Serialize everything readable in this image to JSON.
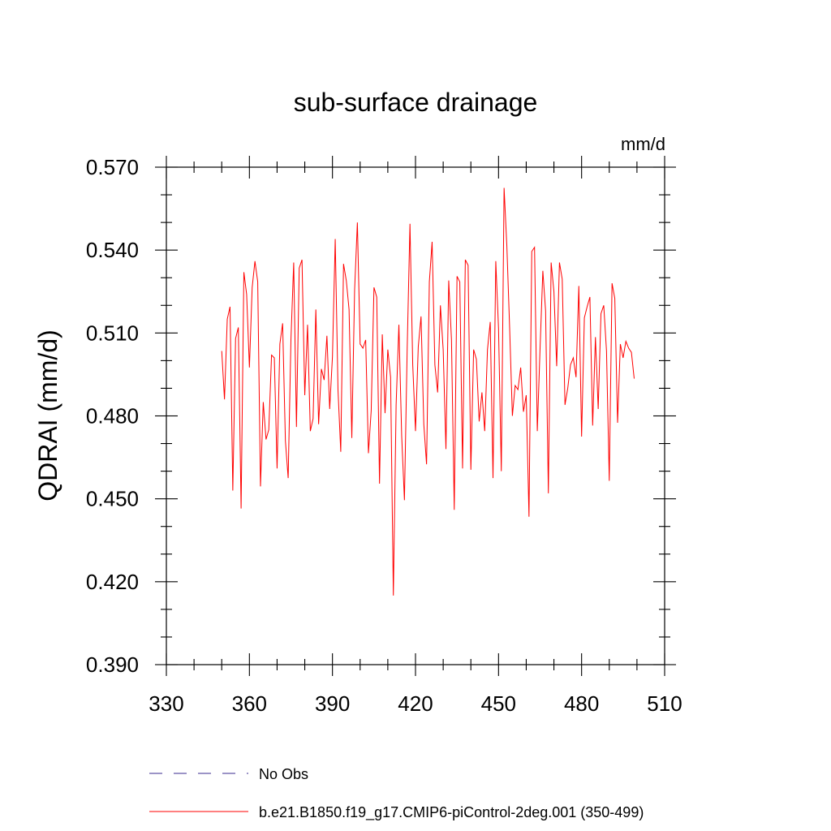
{
  "chart_data": {
    "type": "line",
    "title": "sub-surface drainage",
    "units": "mm/d",
    "ylabel": "QDRAI  (mm/d)",
    "xlabel": "",
    "xlim": [
      330,
      510
    ],
    "ylim": [
      0.39,
      0.57
    ],
    "x_ticks": [
      330,
      360,
      390,
      420,
      450,
      480,
      510
    ],
    "x_tick_labels": [
      "330",
      "360",
      "390",
      "420",
      "450",
      "480",
      "510"
    ],
    "y_ticks": [
      0.39,
      0.42,
      0.45,
      0.48,
      0.51,
      0.54,
      0.57
    ],
    "y_tick_labels": [
      "0.390",
      "0.420",
      "0.450",
      "0.480",
      "0.510",
      "0.540",
      "0.570"
    ],
    "series": [
      {
        "name": "b.e21.B1850.f19_g17.CMIP6-piControl-2deg.001 (350-499)",
        "color": "#ff0000",
        "x_start": 350,
        "x_step": 1,
        "values": [
          0.5035,
          0.486,
          0.515,
          0.5195,
          0.453,
          0.508,
          0.512,
          0.4465,
          0.532,
          0.524,
          0.4975,
          0.5265,
          0.536,
          0.5285,
          0.4545,
          0.485,
          0.4715,
          0.475,
          0.502,
          0.501,
          0.461,
          0.506,
          0.5135,
          0.471,
          0.4575,
          0.5075,
          0.5355,
          0.476,
          0.5335,
          0.5365,
          0.4875,
          0.513,
          0.4745,
          0.479,
          0.5185,
          0.477,
          0.497,
          0.493,
          0.509,
          0.4825,
          0.5015,
          0.544,
          0.4895,
          0.467,
          0.535,
          0.529,
          0.5185,
          0.472,
          0.5255,
          0.55,
          0.506,
          0.5045,
          0.5075,
          0.4665,
          0.482,
          0.5265,
          0.523,
          0.4555,
          0.5095,
          0.481,
          0.504,
          0.494,
          0.415,
          0.484,
          0.513,
          0.473,
          0.4495,
          0.5045,
          0.5495,
          0.4985,
          0.4745,
          0.505,
          0.516,
          0.477,
          0.4625,
          0.5285,
          0.543,
          0.4985,
          0.4885,
          0.52,
          0.504,
          0.468,
          0.529,
          0.5075,
          0.446,
          0.5305,
          0.5285,
          0.461,
          0.5365,
          0.5345,
          0.4605,
          0.504,
          0.5005,
          0.478,
          0.4885,
          0.4745,
          0.504,
          0.514,
          0.4575,
          0.536,
          0.5115,
          0.46,
          0.5625,
          0.5415,
          0.512,
          0.48,
          0.491,
          0.4895,
          0.4975,
          0.4815,
          0.4875,
          0.4435,
          0.5395,
          0.541,
          0.4745,
          0.5045,
          0.5325,
          0.518,
          0.452,
          0.5355,
          0.525,
          0.498,
          0.5355,
          0.5295,
          0.484,
          0.49,
          0.4985,
          0.501,
          0.494,
          0.527,
          0.4725,
          0.5155,
          0.5195,
          0.523,
          0.4765,
          0.5085,
          0.4825,
          0.517,
          0.52,
          0.5035,
          0.4565,
          0.528,
          0.5225,
          0.4775,
          0.506,
          0.501,
          0.507,
          0.5045,
          0.503,
          0.4935
        ]
      }
    ],
    "legend": [
      {
        "label": "No Obs",
        "style": "dashed",
        "color": "#3a2a8f"
      },
      {
        "label": "b.e21.B1850.f19_g17.CMIP6-piControl-2deg.001 (350-499)",
        "style": "solid",
        "color": "#ff0000"
      }
    ],
    "legend_position": "bottom"
  }
}
